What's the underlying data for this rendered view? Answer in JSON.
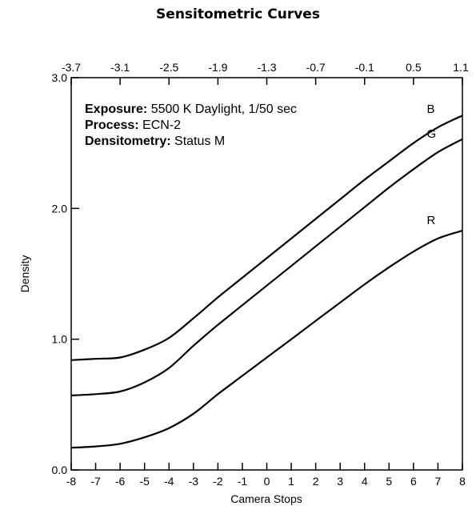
{
  "chart_data": {
    "type": "line",
    "title": "Sensitometric Curves",
    "xlabel": "Camera Stops",
    "ylabel": "Density",
    "xlim": [
      -8,
      8
    ],
    "ylim": [
      0,
      3.0
    ],
    "x_ticks": [
      "-8",
      "-7",
      "-6",
      "-5",
      "-4",
      "-3",
      "-2",
      "-1",
      "0",
      "1",
      "2",
      "3",
      "4",
      "5",
      "6",
      "7",
      "8"
    ],
    "y_ticks": [
      "0.0",
      "1.0",
      "2.0",
      "3.0"
    ],
    "y_tick_values": [
      0,
      1,
      2,
      3
    ],
    "top_axis_ticks": [
      "-3.7",
      "-3.1",
      "-2.5",
      "-1.9",
      "-1.3",
      "-0.7",
      "-0.1",
      "0.5",
      "1.1"
    ],
    "grid": false,
    "annotations": [
      {
        "bold": "Exposure:",
        "text": " 5500 K Daylight, 1/50 sec"
      },
      {
        "bold": "Process:",
        "text": " ECN-2"
      },
      {
        "bold": "Densitometry:",
        "text": " Status M"
      }
    ],
    "series": [
      {
        "name": "B",
        "color": "#000000",
        "x": [
          -8,
          -7,
          -6,
          -5,
          -4,
          -3,
          -2,
          -1,
          0,
          1,
          2,
          3,
          4,
          5,
          6,
          7,
          8
        ],
        "y": [
          0.84,
          0.85,
          0.86,
          0.92,
          1.01,
          1.16,
          1.32,
          1.47,
          1.62,
          1.77,
          1.92,
          2.07,
          2.22,
          2.36,
          2.5,
          2.62,
          2.71
        ]
      },
      {
        "name": "G",
        "color": "#000000",
        "x": [
          -8,
          -7,
          -6,
          -5,
          -4,
          -3,
          -2,
          -1,
          0,
          1,
          2,
          3,
          4,
          5,
          6,
          7,
          8
        ],
        "y": [
          0.57,
          0.58,
          0.6,
          0.67,
          0.78,
          0.95,
          1.11,
          1.26,
          1.41,
          1.56,
          1.71,
          1.86,
          2.01,
          2.16,
          2.3,
          2.43,
          2.53
        ]
      },
      {
        "name": "R",
        "color": "#000000",
        "x": [
          -8,
          -7,
          -6,
          -5,
          -4,
          -3,
          -2,
          -1,
          0,
          1,
          2,
          3,
          4,
          5,
          6,
          7,
          8
        ],
        "y": [
          0.17,
          0.18,
          0.2,
          0.25,
          0.32,
          0.43,
          0.58,
          0.72,
          0.86,
          1.0,
          1.14,
          1.28,
          1.42,
          1.55,
          1.67,
          1.77,
          1.83
        ]
      }
    ]
  }
}
